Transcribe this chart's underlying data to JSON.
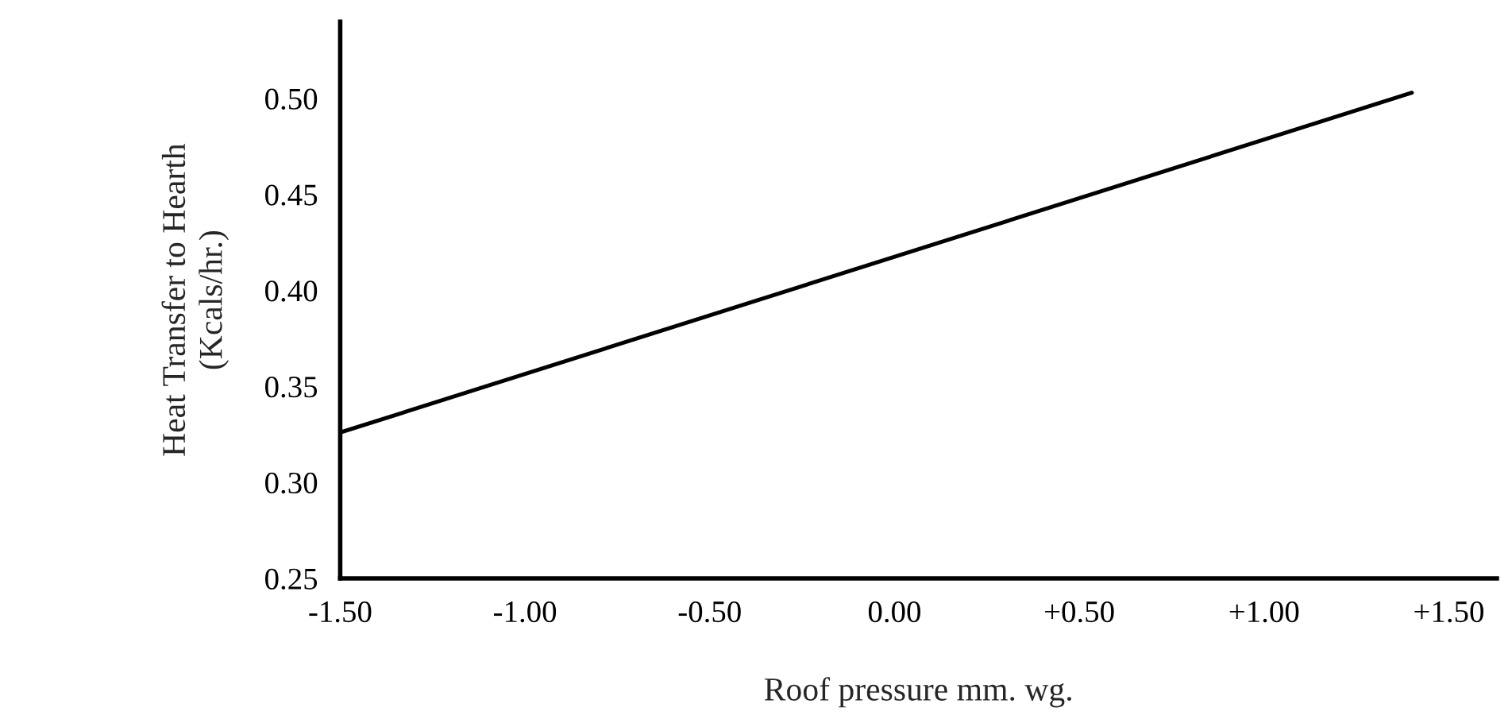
{
  "chart_data": {
    "type": "line",
    "xlabel": "Roof pressure mm. wg.",
    "ylabel": "Heat Transfer to Hearth\n(Kcals/hr.)",
    "x": [
      -1.5,
      1.4
    ],
    "series": [
      {
        "color": "#000000",
        "values": [
          0.326,
          0.503
        ]
      }
    ],
    "xlim": [
      -1.5,
      1.63
    ],
    "xticks": [
      {
        "value": -1.5,
        "label": "-1.50"
      },
      {
        "value": -1.0,
        "label": "-1.00"
      },
      {
        "value": -0.5,
        "label": "-0.50"
      },
      {
        "value": 0.0,
        "label": "0.00"
      },
      {
        "value": 0.5,
        "label": "+0.50"
      },
      {
        "value": 1.0,
        "label": "+1.00"
      },
      {
        "value": 1.5,
        "label": "+1.50"
      }
    ],
    "ylim": [
      0.25,
      0.54
    ],
    "yticks": [
      {
        "value": 0.25,
        "label": "0.25"
      },
      {
        "value": 0.3,
        "label": "0.30"
      },
      {
        "value": 0.35,
        "label": "0.35"
      },
      {
        "value": 0.4,
        "label": "0.40"
      },
      {
        "value": 0.45,
        "label": "0.45"
      },
      {
        "value": 0.5,
        "label": "0.50"
      }
    ],
    "grid": false,
    "legend": false
  }
}
